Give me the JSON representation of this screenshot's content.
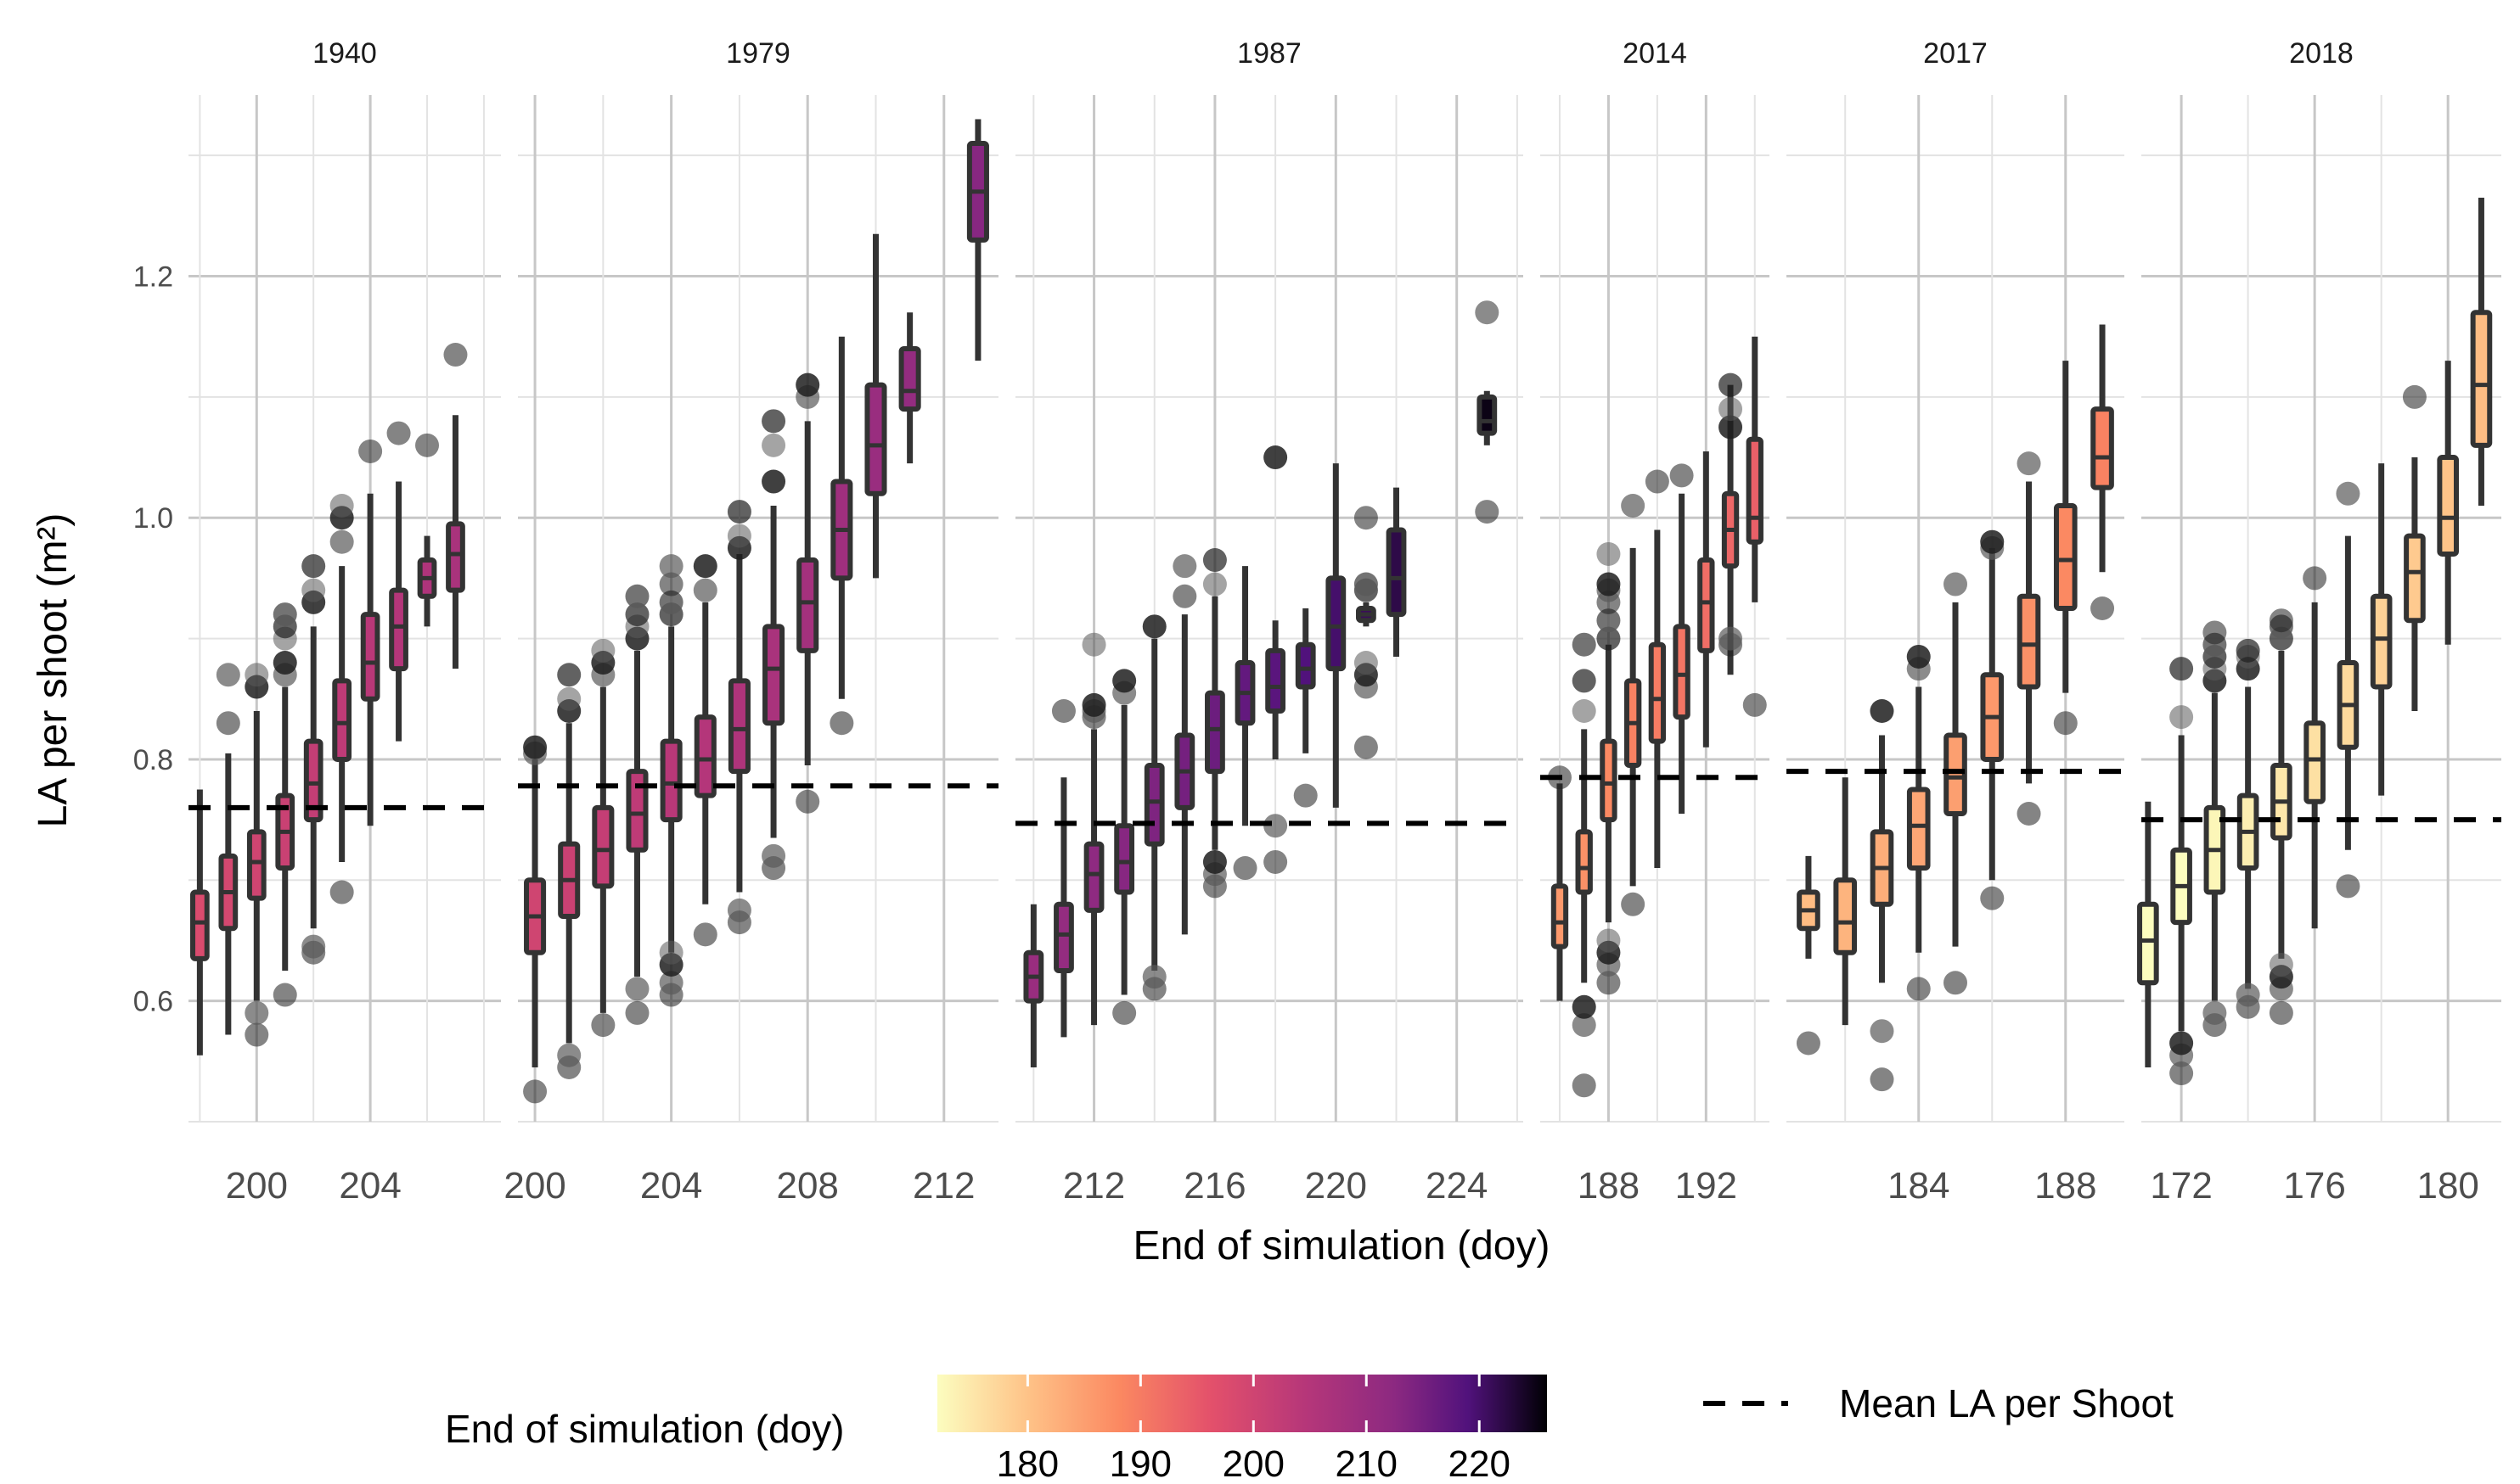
{
  "chart_data": {
    "type": "boxplot",
    "facets": [
      {
        "year": "1940",
        "xlim": [
          197.6,
          208.6
        ],
        "xticks": [
          200,
          204
        ],
        "mean_la": 0.76,
        "boxes": [
          {
            "doy": 198,
            "lo": 0.555,
            "q1": 0.635,
            "med": 0.665,
            "q3": 0.69,
            "hi": 0.775,
            "outliers": []
          },
          {
            "doy": 199,
            "lo": 0.572,
            "q1": 0.66,
            "med": 0.69,
            "q3": 0.72,
            "hi": 0.805,
            "outliers": [
              0.83,
              0.87
            ]
          },
          {
            "doy": 200,
            "lo": 0.6,
            "q1": 0.685,
            "med": 0.715,
            "q3": 0.74,
            "hi": 0.84,
            "outliers": [
              0.572,
              0.59,
              0.86,
              0.87
            ]
          },
          {
            "doy": 201,
            "lo": 0.625,
            "q1": 0.71,
            "med": 0.74,
            "q3": 0.77,
            "hi": 0.86,
            "outliers": [
              0.605,
              0.87,
              0.88,
              0.9,
              0.91,
              0.92
            ]
          },
          {
            "doy": 202,
            "lo": 0.66,
            "q1": 0.75,
            "med": 0.78,
            "q3": 0.815,
            "hi": 0.91,
            "outliers": [
              0.64,
              0.645,
              0.93,
              0.94,
              0.96
            ]
          },
          {
            "doy": 203,
            "lo": 0.715,
            "q1": 0.8,
            "med": 0.83,
            "q3": 0.865,
            "hi": 0.96,
            "outliers": [
              0.69,
              0.98,
              1.0,
              1.01
            ]
          },
          {
            "doy": 204,
            "lo": 0.745,
            "q1": 0.85,
            "med": 0.88,
            "q3": 0.92,
            "hi": 1.02,
            "outliers": [
              1.055
            ]
          },
          {
            "doy": 205,
            "lo": 0.815,
            "q1": 0.875,
            "med": 0.91,
            "q3": 0.94,
            "hi": 1.03,
            "outliers": [
              1.07
            ]
          },
          {
            "doy": 206,
            "lo": 0.91,
            "q1": 0.935,
            "med": 0.95,
            "q3": 0.965,
            "hi": 0.985,
            "outliers": [
              1.06
            ]
          },
          {
            "doy": 207,
            "lo": 0.875,
            "q1": 0.94,
            "med": 0.97,
            "q3": 0.995,
            "hi": 1.085,
            "outliers": [
              1.135
            ]
          }
        ]
      },
      {
        "year": "1979",
        "xlim": [
          199.5,
          213.6
        ],
        "xticks": [
          200,
          204,
          208,
          212
        ],
        "mean_la": 0.778,
        "boxes": [
          {
            "doy": 200,
            "lo": 0.545,
            "q1": 0.64,
            "med": 0.67,
            "q3": 0.7,
            "hi": 0.8,
            "outliers": [
              0.525,
              0.805,
              0.81
            ]
          },
          {
            "doy": 201,
            "lo": 0.565,
            "q1": 0.67,
            "med": 0.7,
            "q3": 0.73,
            "hi": 0.83,
            "outliers": [
              0.545,
              0.555,
              0.84,
              0.85,
              0.87
            ]
          },
          {
            "doy": 202,
            "lo": 0.59,
            "q1": 0.695,
            "med": 0.725,
            "q3": 0.76,
            "hi": 0.86,
            "outliers": [
              0.58,
              0.87,
              0.88,
              0.89
            ]
          },
          {
            "doy": 203,
            "lo": 0.62,
            "q1": 0.725,
            "med": 0.755,
            "q3": 0.79,
            "hi": 0.89,
            "outliers": [
              0.59,
              0.61,
              0.9,
              0.91,
              0.92,
              0.935
            ]
          },
          {
            "doy": 204,
            "lo": 0.64,
            "q1": 0.75,
            "med": 0.78,
            "q3": 0.815,
            "hi": 0.91,
            "outliers": [
              0.605,
              0.615,
              0.63,
              0.64,
              0.92,
              0.93,
              0.945,
              0.96
            ]
          },
          {
            "doy": 205,
            "lo": 0.68,
            "q1": 0.77,
            "med": 0.8,
            "q3": 0.835,
            "hi": 0.93,
            "outliers": [
              0.655,
              0.94,
              0.96
            ]
          },
          {
            "doy": 206,
            "lo": 0.69,
            "q1": 0.79,
            "med": 0.825,
            "q3": 0.865,
            "hi": 0.97,
            "outliers": [
              0.665,
              0.675,
              0.975,
              0.985,
              1.005
            ]
          },
          {
            "doy": 207,
            "lo": 0.735,
            "q1": 0.83,
            "med": 0.875,
            "q3": 0.91,
            "hi": 1.01,
            "outliers": [
              0.71,
              0.72,
              1.03,
              1.06,
              1.08
            ]
          },
          {
            "doy": 208,
            "lo": 0.795,
            "q1": 0.89,
            "med": 0.93,
            "q3": 0.965,
            "hi": 1.08,
            "outliers": [
              0.765,
              1.1,
              1.11
            ]
          },
          {
            "doy": 209,
            "lo": 0.85,
            "q1": 0.95,
            "med": 0.99,
            "q3": 1.03,
            "hi": 1.15,
            "outliers": [
              0.83
            ]
          },
          {
            "doy": 210,
            "lo": 0.95,
            "q1": 1.02,
            "med": 1.06,
            "q3": 1.11,
            "hi": 1.235,
            "outliers": []
          },
          {
            "doy": 211,
            "lo": 1.045,
            "q1": 1.09,
            "med": 1.105,
            "q3": 1.14,
            "hi": 1.17,
            "outliers": []
          },
          {
            "doy": 213,
            "lo": 1.13,
            "q1": 1.23,
            "med": 1.27,
            "q3": 1.31,
            "hi": 1.33,
            "outliers": []
          }
        ]
      },
      {
        "year": "1987",
        "xlim": [
          209.4,
          226.2
        ],
        "xticks": [
          212,
          216,
          220,
          224
        ],
        "mean_la": 0.747,
        "boxes": [
          {
            "doy": 210,
            "lo": 0.545,
            "q1": 0.6,
            "med": 0.62,
            "q3": 0.64,
            "hi": 0.68,
            "outliers": []
          },
          {
            "doy": 211,
            "lo": 0.57,
            "q1": 0.625,
            "med": 0.655,
            "q3": 0.68,
            "hi": 0.785,
            "outliers": [
              0.84
            ]
          },
          {
            "doy": 212,
            "lo": 0.58,
            "q1": 0.675,
            "med": 0.705,
            "q3": 0.73,
            "hi": 0.825,
            "outliers": [
              0.835,
              0.84,
              0.845,
              0.895
            ]
          },
          {
            "doy": 213,
            "lo": 0.605,
            "q1": 0.69,
            "med": 0.715,
            "q3": 0.745,
            "hi": 0.845,
            "outliers": [
              0.59,
              0.855,
              0.865
            ]
          },
          {
            "doy": 214,
            "lo": 0.625,
            "q1": 0.73,
            "med": 0.765,
            "q3": 0.795,
            "hi": 0.9,
            "outliers": [
              0.61,
              0.62,
              0.91
            ]
          },
          {
            "doy": 215,
            "lo": 0.655,
            "q1": 0.76,
            "med": 0.79,
            "q3": 0.82,
            "hi": 0.92,
            "outliers": [
              0.935,
              0.96
            ]
          },
          {
            "doy": 216,
            "lo": 0.725,
            "q1": 0.79,
            "med": 0.825,
            "q3": 0.855,
            "hi": 0.935,
            "outliers": [
              0.695,
              0.705,
              0.715,
              0.945,
              0.965
            ]
          },
          {
            "doy": 217,
            "lo": 0.745,
            "q1": 0.83,
            "med": 0.855,
            "q3": 0.88,
            "hi": 0.96,
            "outliers": [
              0.71
            ]
          },
          {
            "doy": 218,
            "lo": 0.8,
            "q1": 0.84,
            "med": 0.86,
            "q3": 0.89,
            "hi": 0.915,
            "outliers": [
              0.715,
              0.745,
              1.05
            ]
          },
          {
            "doy": 219,
            "lo": 0.805,
            "q1": 0.86,
            "med": 0.875,
            "q3": 0.895,
            "hi": 0.925,
            "outliers": [
              0.77
            ]
          },
          {
            "doy": 220,
            "lo": 0.76,
            "q1": 0.875,
            "med": 0.91,
            "q3": 0.95,
            "hi": 1.045,
            "outliers": []
          },
          {
            "doy": 221,
            "lo": 0.91,
            "q1": 0.915,
            "med": 0.92,
            "q3": 0.925,
            "hi": 0.93,
            "outliers": [
              0.81,
              0.86,
              0.87,
              0.88,
              0.94,
              0.945,
              1.0
            ]
          },
          {
            "doy": 222,
            "lo": 0.885,
            "q1": 0.92,
            "med": 0.95,
            "q3": 0.99,
            "hi": 1.025,
            "outliers": []
          },
          {
            "doy": 225,
            "lo": 1.06,
            "q1": 1.07,
            "med": 1.08,
            "q3": 1.1,
            "hi": 1.105,
            "outliers": [
              1.005,
              1.17
            ]
          }
        ]
      },
      {
        "year": "2014",
        "xlim": [
          185.2,
          194.6
        ],
        "xticks": [
          188,
          192
        ],
        "mean_la": 0.785,
        "boxes": [
          {
            "doy": 186,
            "lo": 0.6,
            "q1": 0.645,
            "med": 0.665,
            "q3": 0.695,
            "hi": 0.78,
            "outliers": [
              0.785
            ]
          },
          {
            "doy": 187,
            "lo": 0.615,
            "q1": 0.69,
            "med": 0.71,
            "q3": 0.74,
            "hi": 0.825,
            "outliers": [
              0.53,
              0.58,
              0.595,
              0.84,
              0.865,
              0.895
            ]
          },
          {
            "doy": 188,
            "lo": 0.665,
            "q1": 0.75,
            "med": 0.78,
            "q3": 0.815,
            "hi": 0.895,
            "outliers": [
              0.615,
              0.63,
              0.64,
              0.65,
              0.9,
              0.915,
              0.93,
              0.94,
              0.945,
              0.97
            ]
          },
          {
            "doy": 189,
            "lo": 0.695,
            "q1": 0.795,
            "med": 0.83,
            "q3": 0.865,
            "hi": 0.975,
            "outliers": [
              0.68,
              1.01
            ]
          },
          {
            "doy": 190,
            "lo": 0.71,
            "q1": 0.815,
            "med": 0.85,
            "q3": 0.895,
            "hi": 0.99,
            "outliers": [
              1.03
            ]
          },
          {
            "doy": 191,
            "lo": 0.755,
            "q1": 0.835,
            "med": 0.87,
            "q3": 0.91,
            "hi": 1.02,
            "outliers": [
              1.035
            ]
          },
          {
            "doy": 192,
            "lo": 0.81,
            "q1": 0.89,
            "med": 0.93,
            "q3": 0.965,
            "hi": 1.055,
            "outliers": []
          },
          {
            "doy": 193,
            "lo": 0.87,
            "q1": 0.96,
            "med": 0.99,
            "q3": 1.02,
            "hi": 1.11,
            "outliers": [
              0.895,
              0.9,
              1.075,
              1.09,
              1.11
            ]
          },
          {
            "doy": 194,
            "lo": 0.93,
            "q1": 0.98,
            "med": 1.0,
            "q3": 1.065,
            "hi": 1.15,
            "outliers": [
              0.845
            ]
          }
        ]
      },
      {
        "year": "2017",
        "xlim": [
          180.4,
          189.6
        ],
        "xticks": [
          184,
          188
        ],
        "mean_la": 0.79,
        "boxes": [
          {
            "doy": 181,
            "lo": 0.635,
            "q1": 0.66,
            "med": 0.675,
            "q3": 0.69,
            "hi": 0.72,
            "outliers": [
              0.565
            ]
          },
          {
            "doy": 182,
            "lo": 0.58,
            "q1": 0.64,
            "med": 0.665,
            "q3": 0.7,
            "hi": 0.785,
            "outliers": []
          },
          {
            "doy": 183,
            "lo": 0.615,
            "q1": 0.68,
            "med": 0.71,
            "q3": 0.74,
            "hi": 0.82,
            "outliers": [
              0.535,
              0.575,
              0.84
            ]
          },
          {
            "doy": 184,
            "lo": 0.64,
            "q1": 0.71,
            "med": 0.745,
            "q3": 0.775,
            "hi": 0.86,
            "outliers": [
              0.61,
              0.875,
              0.885
            ]
          },
          {
            "doy": 185,
            "lo": 0.645,
            "q1": 0.755,
            "med": 0.785,
            "q3": 0.82,
            "hi": 0.93,
            "outliers": [
              0.615,
              0.945
            ]
          },
          {
            "doy": 186,
            "lo": 0.7,
            "q1": 0.8,
            "med": 0.835,
            "q3": 0.87,
            "hi": 0.975,
            "outliers": [
              0.685,
              0.975,
              0.98
            ]
          },
          {
            "doy": 187,
            "lo": 0.78,
            "q1": 0.86,
            "med": 0.895,
            "q3": 0.935,
            "hi": 1.03,
            "outliers": [
              0.755,
              1.045
            ]
          },
          {
            "doy": 188,
            "lo": 0.855,
            "q1": 0.925,
            "med": 0.965,
            "q3": 1.01,
            "hi": 1.13,
            "outliers": [
              0.83
            ]
          },
          {
            "doy": 189,
            "lo": 0.955,
            "q1": 1.025,
            "med": 1.05,
            "q3": 1.09,
            "hi": 1.16,
            "outliers": [
              0.925
            ]
          }
        ]
      },
      {
        "year": "2018",
        "xlim": [
          170.8,
          181.6
        ],
        "xticks": [
          172,
          176,
          180
        ],
        "mean_la": 0.75,
        "boxes": [
          {
            "doy": 171,
            "lo": 0.545,
            "q1": 0.615,
            "med": 0.65,
            "q3": 0.68,
            "hi": 0.765,
            "outliers": []
          },
          {
            "doy": 172,
            "lo": 0.575,
            "q1": 0.665,
            "med": 0.695,
            "q3": 0.725,
            "hi": 0.82,
            "outliers": [
              0.54,
              0.555,
              0.565,
              0.835,
              0.875
            ]
          },
          {
            "doy": 173,
            "lo": 0.6,
            "q1": 0.69,
            "med": 0.725,
            "q3": 0.76,
            "hi": 0.855,
            "outliers": [
              0.58,
              0.59,
              0.865,
              0.875,
              0.885,
              0.895,
              0.905
            ]
          },
          {
            "doy": 174,
            "lo": 0.61,
            "q1": 0.71,
            "med": 0.74,
            "q3": 0.77,
            "hi": 0.86,
            "outliers": [
              0.595,
              0.605,
              0.875,
              0.885,
              0.89
            ]
          },
          {
            "doy": 175,
            "lo": 0.635,
            "q1": 0.735,
            "med": 0.765,
            "q3": 0.795,
            "hi": 0.89,
            "outliers": [
              0.59,
              0.61,
              0.62,
              0.63,
              0.9,
              0.91,
              0.915
            ]
          },
          {
            "doy": 176,
            "lo": 0.66,
            "q1": 0.765,
            "med": 0.8,
            "q3": 0.83,
            "hi": 0.93,
            "outliers": [
              0.95
            ]
          },
          {
            "doy": 177,
            "lo": 0.725,
            "q1": 0.81,
            "med": 0.845,
            "q3": 0.88,
            "hi": 0.985,
            "outliers": [
              0.695,
              1.02
            ]
          },
          {
            "doy": 178,
            "lo": 0.77,
            "q1": 0.86,
            "med": 0.9,
            "q3": 0.935,
            "hi": 1.045,
            "outliers": []
          },
          {
            "doy": 179,
            "lo": 0.84,
            "q1": 0.915,
            "med": 0.955,
            "q3": 0.985,
            "hi": 1.05,
            "outliers": [
              1.1
            ]
          },
          {
            "doy": 180,
            "lo": 0.895,
            "q1": 0.97,
            "med": 1.0,
            "q3": 1.05,
            "hi": 1.13,
            "outliers": []
          },
          {
            "doy": 181,
            "lo": 1.01,
            "q1": 1.06,
            "med": 1.11,
            "q3": 1.17,
            "hi": 1.265,
            "outliers": []
          }
        ]
      }
    ],
    "ylim": [
      0.5,
      1.35
    ],
    "yticks": [
      "0.6",
      "0.8",
      "1.0",
      "1.2"
    ],
    "xlabel": "End of simulation (doy)",
    "ylabel": "LA per shoot (m²)",
    "legend": {
      "colorbar_title": "End of simulation (doy)",
      "colorbar_range": [
        172,
        226
      ],
      "colorbar_ticks": [
        "180",
        "190",
        "200",
        "210",
        "220"
      ],
      "line_label": "Mean LA per Shoot"
    }
  }
}
